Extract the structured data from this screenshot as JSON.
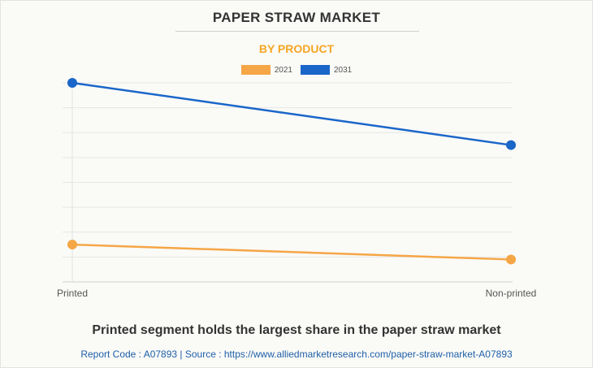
{
  "title": "PAPER STRAW MARKET",
  "subtitle": "BY PRODUCT",
  "footer": {
    "headline": "Printed segment holds the largest share in the paper straw market",
    "source": "Report Code : A07893  |  Source : https://www.alliedmarketresearch.com/paper-straw-market-A07893"
  },
  "chart_data": {
    "type": "line",
    "title": "PAPER STRAW MARKET",
    "subtitle": "BY PRODUCT",
    "categories": [
      "Printed",
      "Non-printed"
    ],
    "series": [
      {
        "name": "2021",
        "color": "#f5a646",
        "values": [
          1.5,
          0.9
        ]
      },
      {
        "name": "2031",
        "color": "#1a66c9",
        "values": [
          8.0,
          5.5
        ]
      }
    ],
    "ylim": [
      0,
      8.0
    ],
    "grid": true,
    "legend_position": "top-center",
    "xlabel": "",
    "ylabel": ""
  }
}
